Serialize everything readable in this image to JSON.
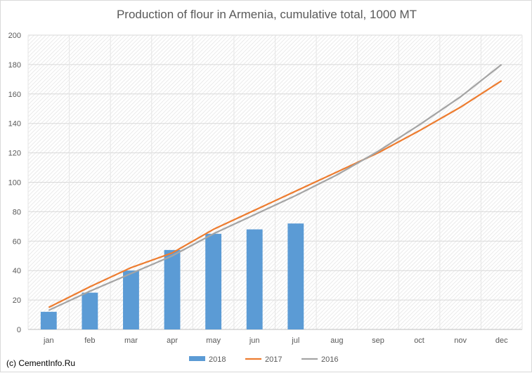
{
  "chart_data": {
    "type": "bar",
    "title": "Production of flour in Armenia, cumulative total, 1000 MT",
    "categories": [
      "jan",
      "feb",
      "mar",
      "apr",
      "may",
      "jun",
      "jul",
      "aug",
      "sep",
      "oct",
      "nov",
      "dec"
    ],
    "ylim": [
      0,
      200
    ],
    "yticks": [
      0,
      20,
      40,
      60,
      80,
      100,
      120,
      140,
      160,
      180,
      200
    ],
    "grid": true,
    "legend_position": "bottom",
    "series": [
      {
        "name": "2018",
        "type": "bar",
        "color": "#5b9bd5",
        "values": [
          12,
          25,
          40,
          54,
          65,
          68,
          72,
          null,
          null,
          null,
          null,
          null
        ]
      },
      {
        "name": "2017",
        "type": "line",
        "color": "#ed7d31",
        "values": [
          15,
          29,
          42,
          52,
          68,
          81,
          94,
          107,
          120,
          135,
          151,
          169
        ]
      },
      {
        "name": "2016",
        "type": "line",
        "color": "#a5a5a5",
        "values": [
          13,
          26,
          38,
          50,
          65,
          78,
          91,
          105,
          121,
          139,
          158,
          180
        ]
      }
    ]
  },
  "footer": {
    "copyright": "(c) CementInfo.Ru"
  }
}
